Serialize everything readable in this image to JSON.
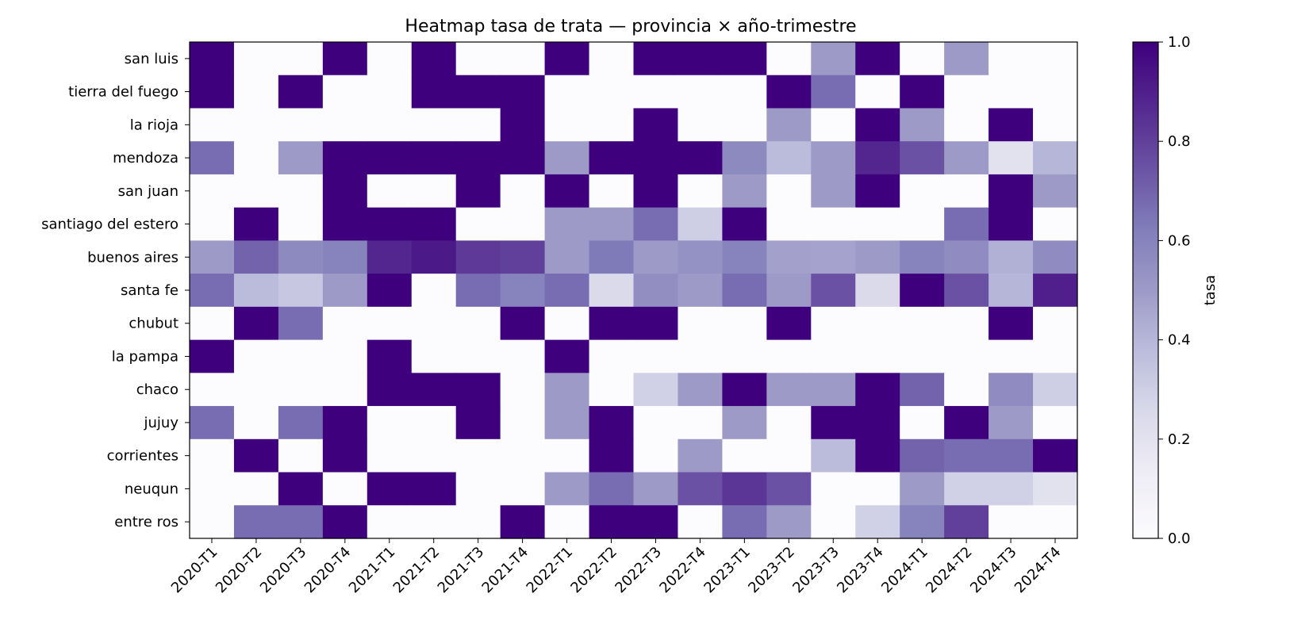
{
  "chart_data": {
    "type": "heatmap",
    "title": "Heatmap tasa de trata — provincia × año-trimestre",
    "colorbar_label": "tasa",
    "colorbar_ticks": [
      "0.0",
      "0.2",
      "0.4",
      "0.6",
      "0.8",
      "1.0"
    ],
    "value_range": [
      0,
      1
    ],
    "colormap": {
      "low": "#fcfbfd",
      "high": "#3f007d",
      "name": "Purples"
    },
    "columns": [
      "2020-T1",
      "2020-T2",
      "2020-T3",
      "2020-T4",
      "2021-T1",
      "2021-T2",
      "2021-T3",
      "2021-T4",
      "2022-T1",
      "2022-T2",
      "2022-T3",
      "2022-T4",
      "2023-T1",
      "2023-T2",
      "2023-T3",
      "2023-T4",
      "2024-T1",
      "2024-T2",
      "2024-T3",
      "2024-T4"
    ],
    "rows": [
      "san luis",
      "tierra del fuego",
      "la rioja",
      "mendoza",
      "san juan",
      "santiago del estero",
      "buenos aires",
      "santa fe",
      "chubut",
      "la pampa",
      "chaco",
      "jujuy",
      "corrientes",
      "neuqun",
      "entre ros"
    ],
    "values": [
      [
        1,
        0,
        0,
        1,
        0,
        1,
        0,
        0,
        1,
        0,
        1,
        1,
        1,
        0,
        0.5,
        1,
        0,
        0.5,
        0,
        0
      ],
      [
        1,
        0,
        1,
        0,
        0,
        1,
        1,
        1,
        0,
        0,
        0,
        0,
        0,
        1,
        0.67,
        0,
        1,
        0,
        0,
        0
      ],
      [
        0,
        0,
        0,
        0,
        0,
        0,
        0,
        1,
        0,
        0,
        1,
        0,
        0,
        0.5,
        0,
        1,
        0.5,
        0,
        1,
        0
      ],
      [
        0.67,
        0,
        0.5,
        1,
        1,
        1,
        1,
        1,
        0.5,
        1,
        1,
        1,
        0.57,
        0.38,
        0.5,
        0.88,
        0.75,
        0.5,
        0.2,
        0.4
      ],
      [
        0,
        0,
        0,
        1,
        0,
        0,
        1,
        0,
        1,
        0,
        1,
        0,
        0.5,
        0,
        0.5,
        1,
        0,
        0,
        1,
        0.5
      ],
      [
        0,
        1,
        0,
        1,
        1,
        1,
        0,
        0,
        0.5,
        0.5,
        0.67,
        0.3,
        1,
        0,
        0,
        0,
        0,
        0.67,
        1,
        0
      ],
      [
        0.5,
        0.7,
        0.57,
        0.6,
        0.88,
        0.92,
        0.82,
        0.8,
        0.5,
        0.63,
        0.5,
        0.54,
        0.6,
        0.48,
        0.47,
        0.5,
        0.6,
        0.56,
        0.42,
        0.56
      ],
      [
        0.67,
        0.38,
        0.33,
        0.5,
        1,
        0,
        0.67,
        0.6,
        0.67,
        0.25,
        0.55,
        0.5,
        0.67,
        0.5,
        0.75,
        0.25,
        1,
        0.75,
        0.4,
        0.9
      ],
      [
        0,
        1,
        0.67,
        0,
        0,
        0,
        0,
        1,
        0,
        1,
        1,
        0,
        0,
        1,
        0,
        0,
        0,
        0,
        1,
        0
      ],
      [
        1,
        0,
        0,
        0,
        1,
        0,
        0,
        0,
        1,
        0,
        0,
        0,
        0,
        0,
        0,
        0,
        0,
        0,
        0,
        0
      ],
      [
        0,
        0,
        0,
        0,
        1,
        1,
        1,
        0,
        0.5,
        0,
        0.29,
        0.5,
        1,
        0.5,
        0.5,
        1,
        0.7,
        0,
        0.56,
        0.3
      ],
      [
        0.67,
        0,
        0.67,
        1,
        0,
        0,
        1,
        0,
        0.5,
        1,
        0,
        0,
        0.5,
        0,
        1,
        1,
        0,
        1,
        0.5,
        0
      ],
      [
        0,
        1,
        0,
        1,
        0,
        0,
        0,
        0,
        0,
        1,
        0,
        0.5,
        0,
        0,
        0.38,
        1,
        0.7,
        0.67,
        0.67,
        1
      ],
      [
        0,
        0,
        1,
        0,
        1,
        1,
        0,
        0,
        0.5,
        0.67,
        0.5,
        0.75,
        0.83,
        0.75,
        0,
        0,
        0.5,
        0.29,
        0.29,
        0.2
      ],
      [
        0,
        0.67,
        0.67,
        1,
        0,
        0,
        0,
        1,
        0,
        1,
        1,
        0,
        0.67,
        0.5,
        0,
        0.29,
        0.6,
        0.8,
        0,
        0
      ]
    ]
  }
}
